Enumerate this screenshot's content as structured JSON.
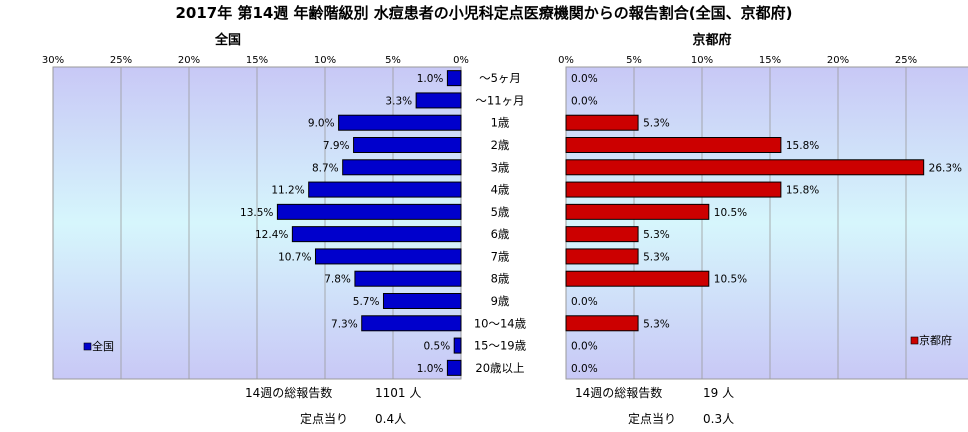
{
  "title": "2017年 第14週 年齢階級別 水痘患者の小児科定点医療機関からの報告割合(全国、京都府)",
  "chart_data": [
    {
      "type": "bar",
      "orientation": "horizontal",
      "direction": "right-to-left",
      "title": "全国",
      "xlim": [
        0,
        30
      ],
      "tick_labels": [
        "0%",
        "5%",
        "10%",
        "15%",
        "20%",
        "25%",
        "30%"
      ],
      "categories": [
        "～5ヶ月",
        "～11ヶ月",
        "1歳",
        "2歳",
        "3歳",
        "4歳",
        "5歳",
        "6歳",
        "7歳",
        "8歳",
        "9歳",
        "10～14歳",
        "15～19歳",
        "20歳以上"
      ],
      "series": [
        {
          "name": "全国",
          "color": "#0000cc",
          "values": [
            1.0,
            3.3,
            9.0,
            7.9,
            8.7,
            11.2,
            13.5,
            12.4,
            10.7,
            7.8,
            5.7,
            7.3,
            0.5,
            1.0
          ],
          "labels": [
            "1.0%",
            "3.3%",
            "9.0%",
            "7.9%",
            "8.7%",
            "11.2%",
            "13.5%",
            "12.4%",
            "10.7%",
            "7.8%",
            "5.7%",
            "7.3%",
            "0.5%",
            "1.0%"
          ]
        }
      ],
      "legend_position": "bottom-left"
    },
    {
      "type": "bar",
      "orientation": "horizontal",
      "title": "京都府",
      "xlim": [
        0,
        30
      ],
      "tick_labels": [
        "0%",
        "5%",
        "10%",
        "15%",
        "20%",
        "25%"
      ],
      "series": [
        {
          "name": "京都府",
          "color": "#cc0000",
          "values": [
            0.0,
            0.0,
            5.3,
            15.8,
            26.3,
            15.8,
            10.5,
            5.3,
            5.3,
            10.5,
            0.0,
            5.3,
            0.0,
            0.0
          ],
          "labels": [
            "0.0%",
            "0.0%",
            "5.3%",
            "15.8%",
            "26.3%",
            "15.8%",
            "10.5%",
            "5.3%",
            "5.3%",
            "10.5%",
            "0.0%",
            "5.3%",
            "0.0%",
            "0.0%"
          ]
        }
      ],
      "legend_position": "bottom-right"
    }
  ],
  "footer": {
    "national": {
      "total_label": "14週の総報告数",
      "total_value": "1101 人",
      "per_label": "定点当り",
      "per_value": "0.4人"
    },
    "kyoto": {
      "total_label": "14週の総報告数",
      "total_value": "19 人",
      "per_label": "定点当り",
      "per_value": "0.3人"
    }
  }
}
